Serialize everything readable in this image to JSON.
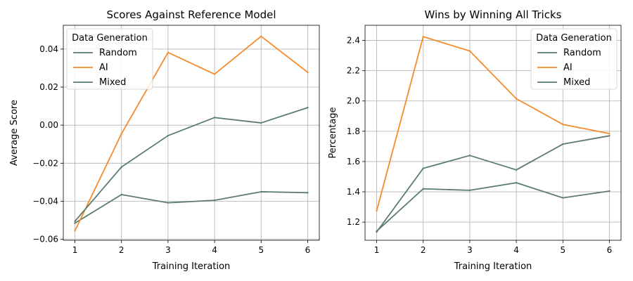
{
  "chart_data": [
    {
      "type": "line",
      "title": "Scores Against Reference Model",
      "xlabel": "Training Iteration",
      "ylabel": "Average Score",
      "x": [
        1,
        2,
        3,
        4,
        5,
        6
      ],
      "xticks": [
        "1",
        "2",
        "3",
        "4",
        "5",
        "6"
      ],
      "xlim": [
        0.75,
        6.25
      ],
      "ylim": [
        -0.0605,
        0.0525
      ],
      "yticks": [
        -0.06,
        -0.04,
        -0.02,
        0.0,
        0.02,
        0.04
      ],
      "ytick_labels": [
        "−0.06",
        "−0.04",
        "−0.02",
        "0.00",
        "0.02",
        "0.04"
      ],
      "grid": true,
      "legend": {
        "title": "Data Generation",
        "placement": "top-left"
      },
      "series": [
        {
          "name": "Random",
          "color": "#5a7d6a",
          "values": [
            -0.0515,
            -0.0365,
            -0.0408,
            -0.0395,
            -0.035,
            -0.0355
          ]
        },
        {
          "name": "AI",
          "color": "#f58b2b",
          "values": [
            -0.0555,
            -0.0045,
            0.0382,
            0.0268,
            0.0467,
            0.0278
          ]
        },
        {
          "name": "Mixed",
          "color": "#5a7d6a",
          "values": [
            -0.0505,
            -0.022,
            -0.0055,
            0.004,
            0.0012,
            0.0092
          ]
        }
      ]
    },
    {
      "type": "line",
      "title": "Wins by Winning All Tricks",
      "xlabel": "Training Iteration",
      "ylabel": "Percentage",
      "x": [
        1,
        2,
        3,
        4,
        5,
        6
      ],
      "xticks": [
        "1",
        "2",
        "3",
        "4",
        "5",
        "6"
      ],
      "xlim": [
        0.75,
        6.25
      ],
      "ylim": [
        1.08,
        2.5
      ],
      "yticks": [
        1.2,
        1.4,
        1.6,
        1.8,
        2.0,
        2.2,
        2.4
      ],
      "ytick_labels": [
        "1.2",
        "1.4",
        "1.6",
        "1.8",
        "2.0",
        "2.2",
        "2.4"
      ],
      "grid": true,
      "legend": {
        "title": "Data Generation",
        "placement": "top-right"
      },
      "series": [
        {
          "name": "Random",
          "color": "#5a7d6a",
          "values": [
            1.14,
            1.42,
            1.41,
            1.46,
            1.36,
            1.405
          ]
        },
        {
          "name": "AI",
          "color": "#f58b2b",
          "values": [
            1.275,
            2.425,
            2.33,
            2.015,
            1.845,
            1.785
          ]
        },
        {
          "name": "Mixed",
          "color": "#5a7d6a",
          "values": [
            1.135,
            1.555,
            1.64,
            1.545,
            1.715,
            1.77
          ]
        }
      ]
    }
  ]
}
